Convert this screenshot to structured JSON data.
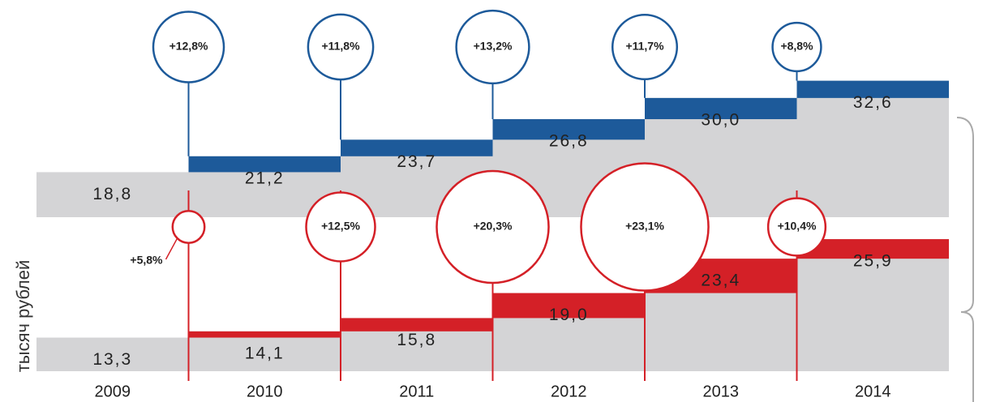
{
  "chart_data": {
    "type": "step",
    "y_label": "тысяч рублей",
    "categories": [
      "2009",
      "2010",
      "2011",
      "2012",
      "2013",
      "2014"
    ],
    "series": [
      {
        "color": "#1d5a9a",
        "ylim": [
          12,
          35
        ],
        "values": [
          18.8,
          21.2,
          23.7,
          26.8,
          30.0,
          32.6
        ],
        "value_labels": [
          "18,8",
          "21,2",
          "23,7",
          "26,8",
          "30,0",
          "32,6"
        ],
        "growth": [
          12.8,
          11.8,
          13.2,
          11.7,
          8.8
        ],
        "growth_labels": [
          "+12,8%",
          "+11,8%",
          "+13,2%",
          "+11,7%",
          "+8,8%"
        ]
      },
      {
        "color": "#d42027",
        "ylim": [
          9,
          28.5
        ],
        "values": [
          13.3,
          14.1,
          15.8,
          19.0,
          23.4,
          25.9
        ],
        "value_labels": [
          "13,3",
          "14,1",
          "15,8",
          "19,0",
          "23,4",
          "25,9"
        ],
        "growth": [
          5.8,
          12.5,
          20.3,
          23.1,
          10.4
        ],
        "growth_labels": [
          "+5,8%",
          "+12,5%",
          "+20,3%",
          "+23,1%",
          "+10,4%"
        ]
      }
    ]
  }
}
